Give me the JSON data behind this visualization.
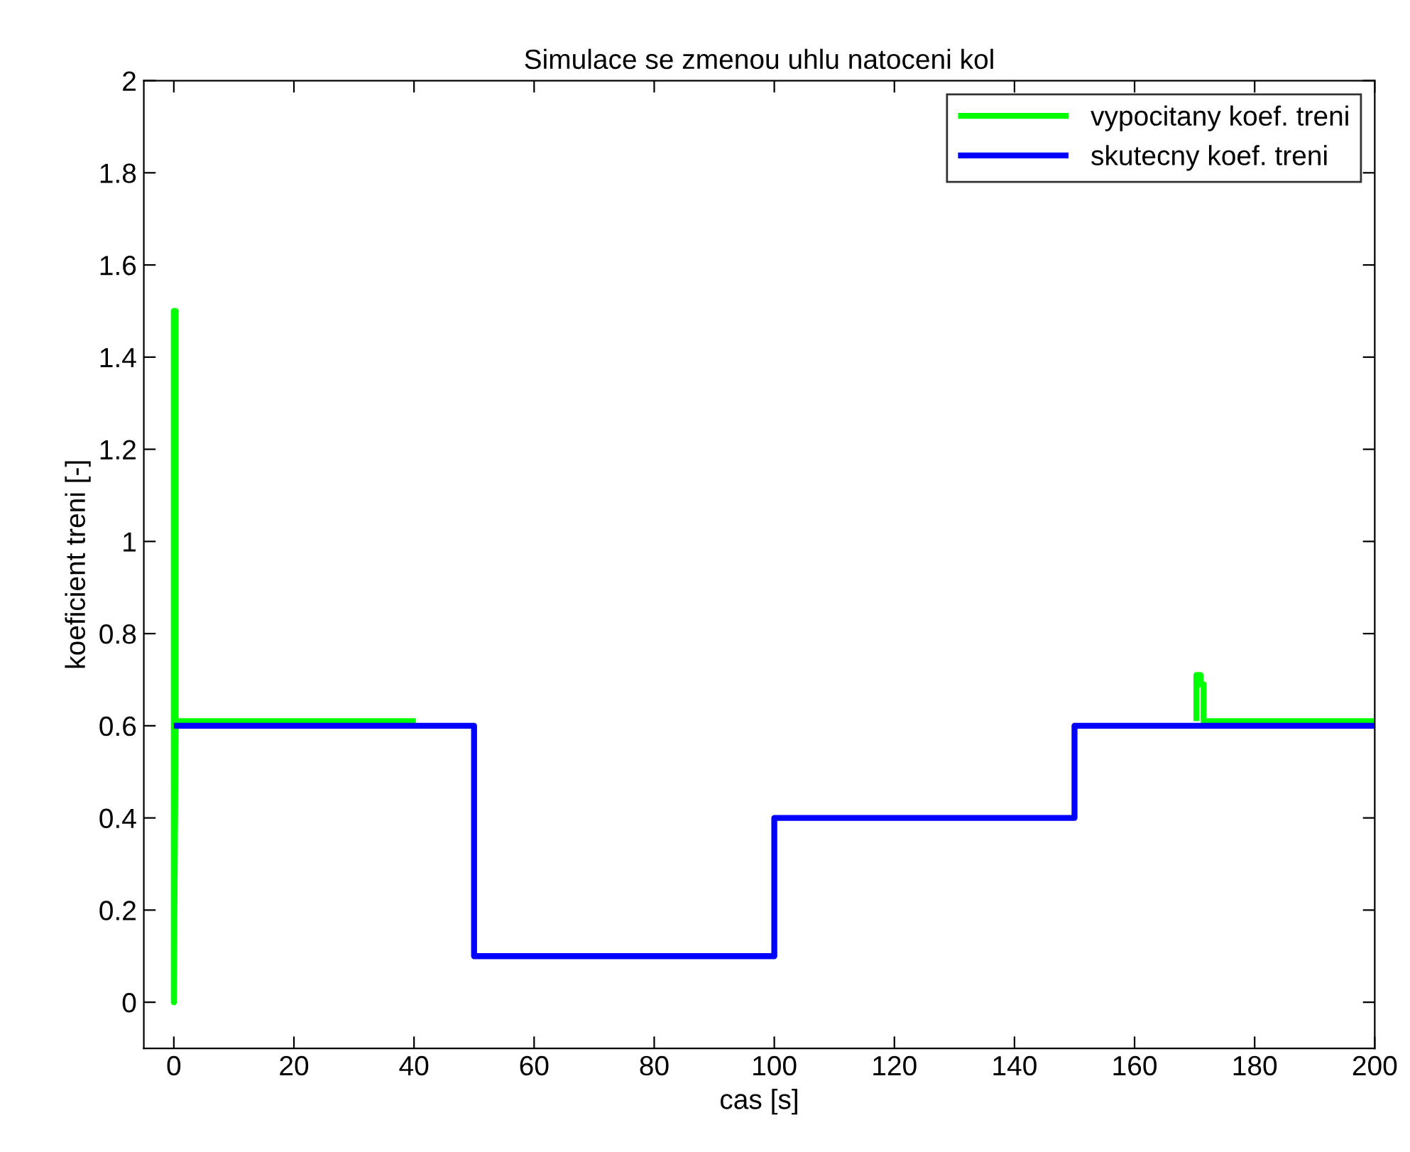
{
  "chart_data": {
    "type": "line",
    "title": "Simulace se zmenou uhlu natoceni kol",
    "xlabel": "cas [s]",
    "ylabel": "koeficient treni [-]",
    "xlim": [
      -5,
      200
    ],
    "ylim": [
      -0.1,
      2
    ],
    "xticks": [
      0,
      20,
      40,
      60,
      80,
      100,
      120,
      140,
      160,
      180,
      200
    ],
    "yticks": [
      0,
      0.2,
      0.4,
      0.6,
      0.8,
      1,
      1.2,
      1.4,
      1.6,
      1.8,
      2
    ],
    "grid": false,
    "legend": "top right",
    "line_style": "solid",
    "marker": "none",
    "series": [
      {
        "name": "vypocitany koef. treni",
        "color": "#00ff00",
        "x": [
          0,
          0.3,
          0.3,
          0,
          0,
          0.3,
          40.3,
          null,
          170.3,
          170.3,
          171.0,
          171.0,
          171.5,
          171.5,
          200
        ],
        "values": [
          0.61,
          0.61,
          1.5,
          1.5,
          0,
          0.61,
          0.61,
          null,
          0.61,
          0.71,
          0.71,
          0.69,
          0.69,
          0.61,
          0.61
        ]
      },
      {
        "name": "skutecny koef. treni",
        "color": "#0000ff",
        "x": [
          0,
          50,
          50,
          100,
          100,
          150,
          150,
          200
        ],
        "values": [
          0.6,
          0.6,
          0.1,
          0.1,
          0.4,
          0.4,
          0.6,
          0.6
        ]
      }
    ]
  }
}
